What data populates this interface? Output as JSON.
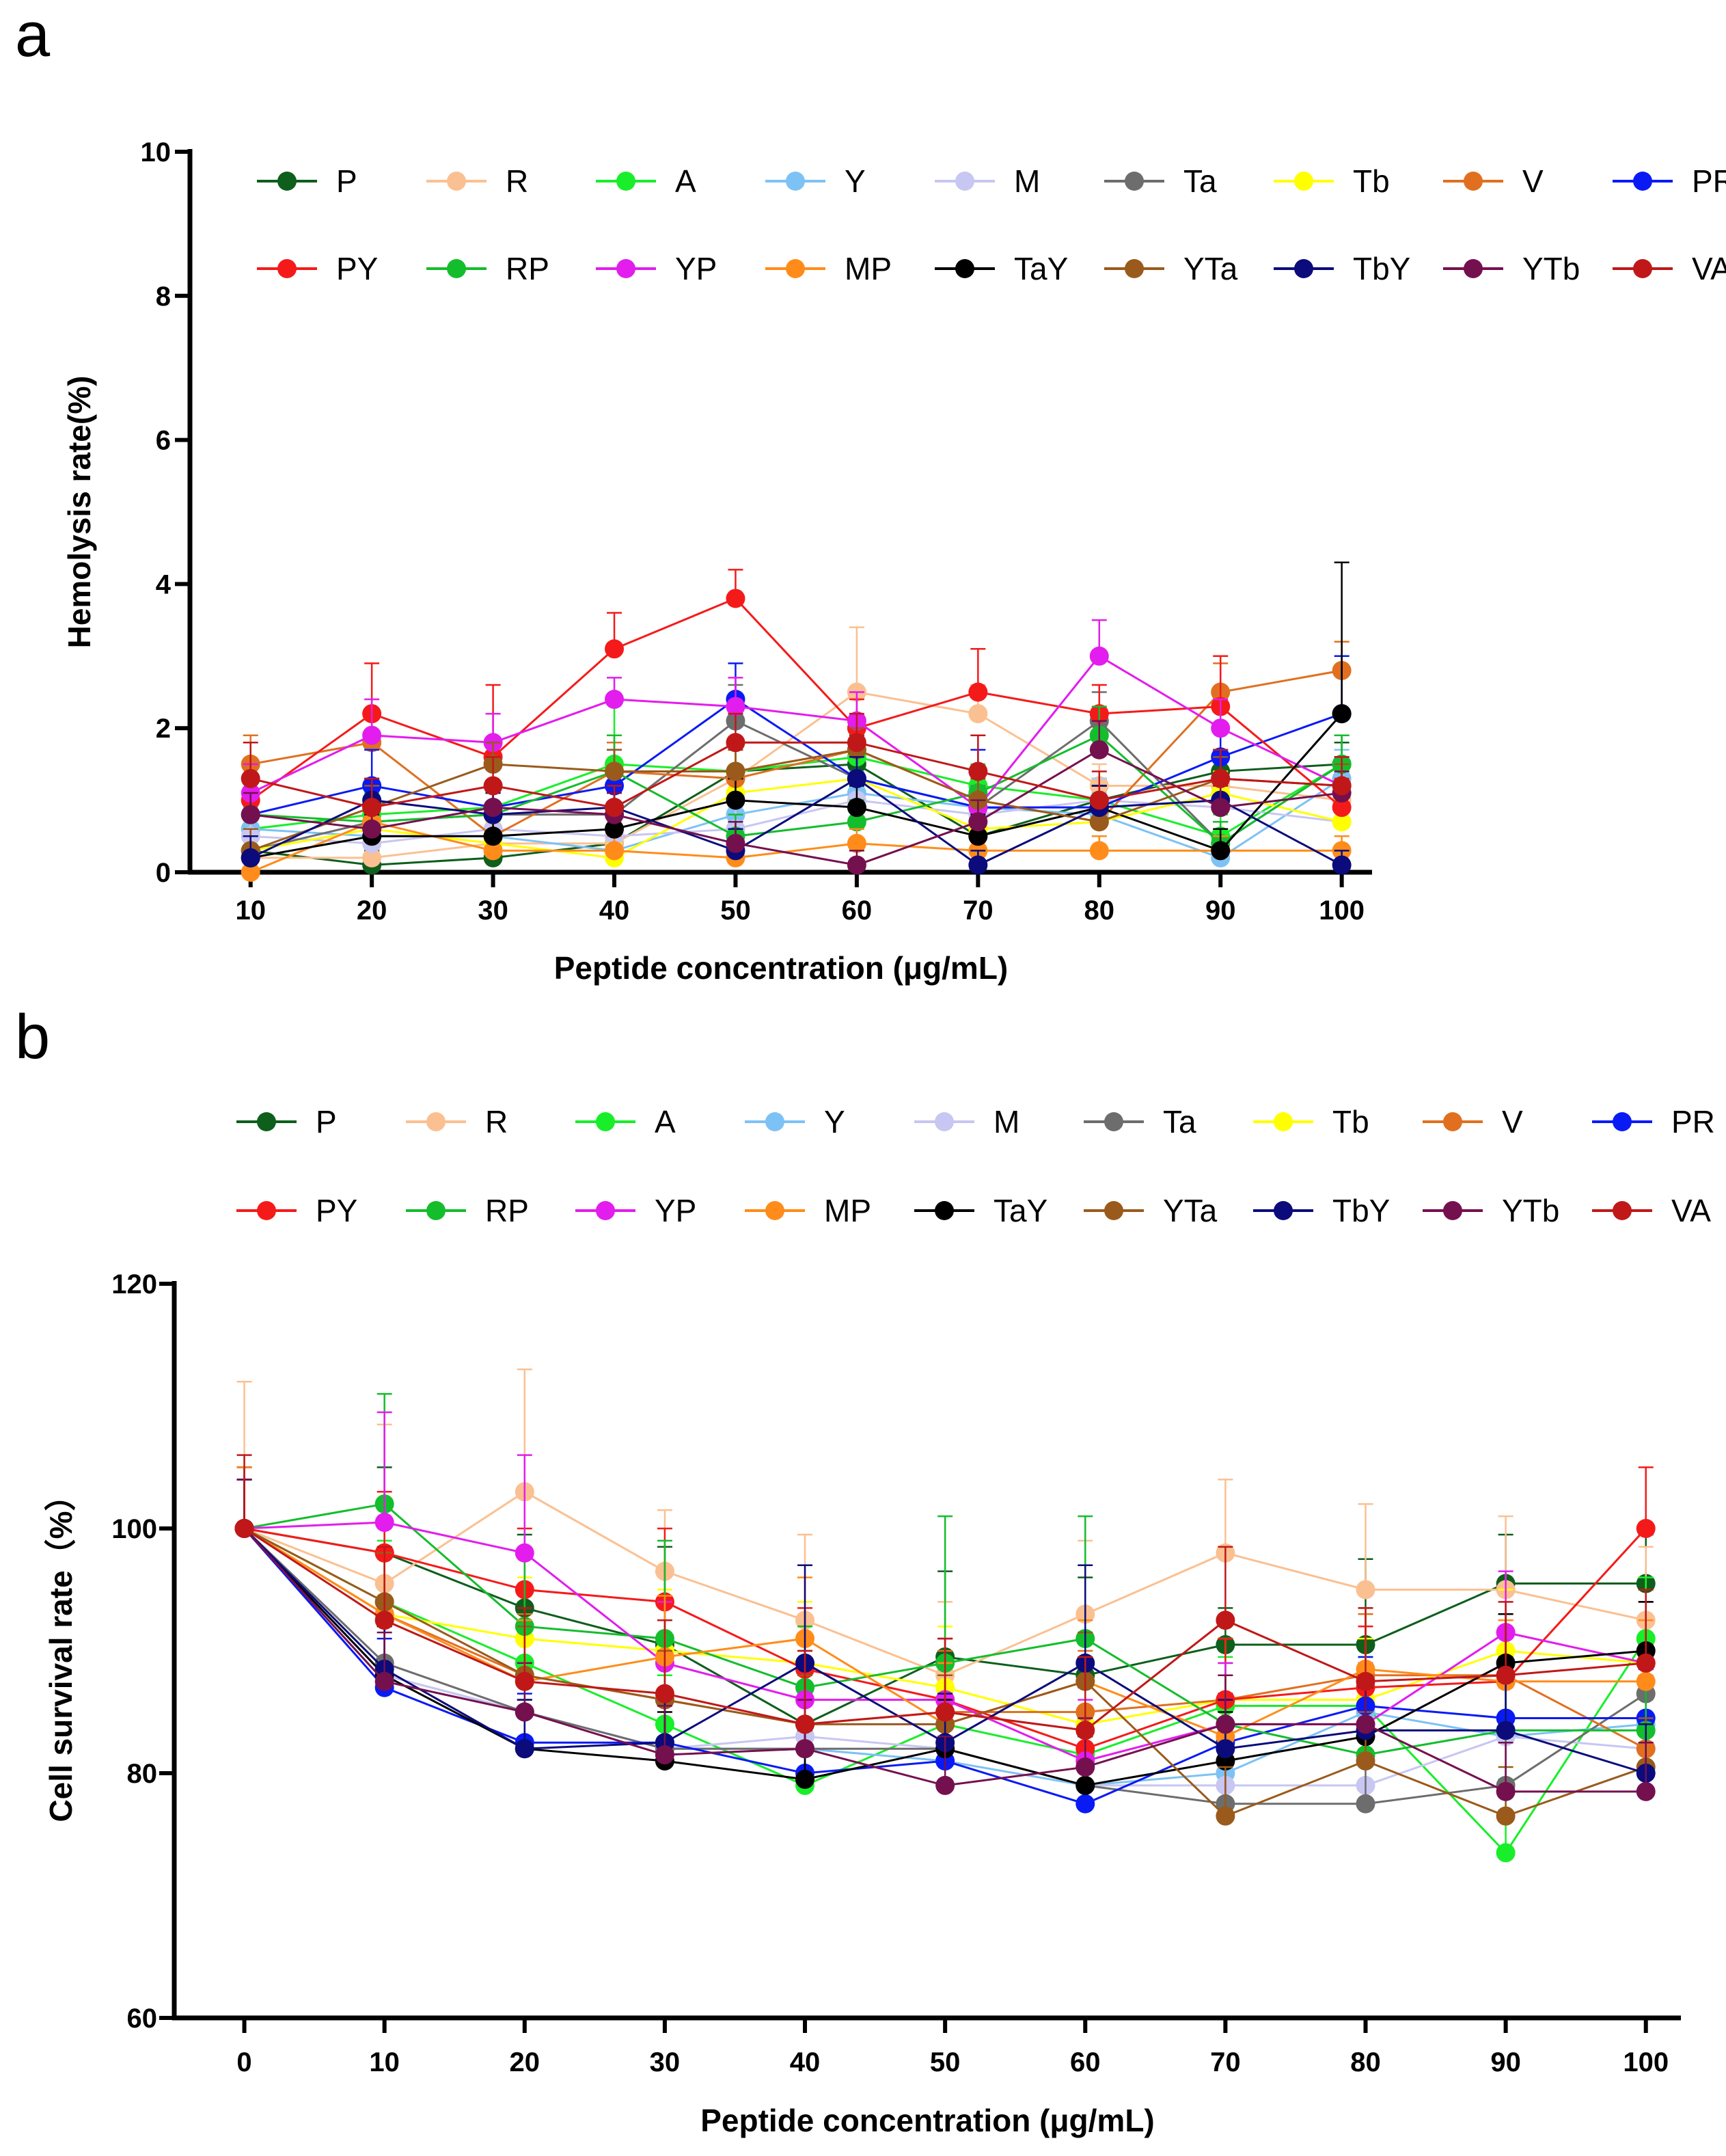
{
  "figure": {
    "panels": [
      "a",
      "b"
    ]
  },
  "chart_data": [
    {
      "panel": "a",
      "type": "line",
      "xlabel": "Peptide concentration (μg/mL)",
      "ylabel": "Hemolysis rate(%)",
      "x": [
        10,
        20,
        30,
        40,
        50,
        60,
        70,
        80,
        90,
        100
      ],
      "x_ticks": [
        10,
        20,
        30,
        40,
        50,
        60,
        70,
        80,
        90,
        100
      ],
      "ylim": [
        0,
        10
      ],
      "y_ticks": [
        0,
        2,
        4,
        6,
        8,
        10
      ],
      "legend_position": "top",
      "series": [
        {
          "name": "P",
          "color": "#0e5e1c",
          "values": [
            0.3,
            0.1,
            0.2,
            0.4,
            1.4,
            1.5,
            0.5,
            1.0,
            1.4,
            1.5
          ],
          "err": [
            0.3,
            0.2,
            0.2,
            0.3,
            0.3,
            0.4,
            0.3,
            0.3,
            0.3,
            0.3
          ]
        },
        {
          "name": "R",
          "color": "#fbc091",
          "values": [
            0.2,
            0.2,
            0.4,
            0.4,
            1.3,
            2.5,
            2.2,
            1.2,
            1.2,
            1.0
          ],
          "err": [
            0.3,
            0.3,
            0.3,
            0.3,
            0.4,
            0.9,
            0.4,
            0.3,
            0.4,
            0.4
          ]
        },
        {
          "name": "A",
          "color": "#19ee2a",
          "values": [
            0.6,
            0.8,
            0.9,
            1.5,
            1.4,
            1.6,
            1.2,
            1.0,
            0.5,
            1.5
          ],
          "err": [
            0.4,
            0.3,
            0.3,
            0.9,
            0.4,
            0.4,
            0.3,
            0.3,
            0.3,
            0.4
          ]
        },
        {
          "name": "Y",
          "color": "#7dc2f5",
          "values": [
            0.6,
            0.5,
            0.5,
            0.3,
            0.8,
            1.1,
            0.9,
            0.8,
            0.2,
            1.3
          ],
          "err": [
            0.3,
            0.3,
            0.3,
            0.2,
            0.3,
            0.3,
            0.3,
            0.3,
            0.2,
            0.4
          ]
        },
        {
          "name": "M",
          "color": "#c8c6f2",
          "values": [
            0.5,
            0.4,
            0.6,
            0.5,
            0.6,
            1.0,
            0.8,
            1.0,
            0.9,
            0.7
          ],
          "err": [
            0.3,
            0.3,
            0.3,
            0.3,
            0.3,
            0.3,
            0.3,
            0.3,
            0.3,
            0.3
          ]
        },
        {
          "name": "Ta",
          "color": "#6d6d6d",
          "values": [
            0.3,
            0.7,
            0.8,
            0.8,
            2.1,
            1.3,
            0.9,
            2.1,
            0.4,
            1.5
          ],
          "err": [
            0.3,
            0.3,
            0.3,
            0.3,
            0.5,
            0.4,
            0.3,
            0.4,
            0.3,
            0.4
          ]
        },
        {
          "name": "Tb",
          "color": "#ffff00",
          "values": [
            0.3,
            0.6,
            0.4,
            0.2,
            1.1,
            1.3,
            0.6,
            0.7,
            1.1,
            0.7
          ],
          "err": [
            0.3,
            0.3,
            0.3,
            0.2,
            0.3,
            0.3,
            0.3,
            0.3,
            0.3,
            0.3
          ]
        },
        {
          "name": "V",
          "color": "#e07020",
          "values": [
            1.5,
            1.8,
            0.5,
            1.4,
            1.3,
            1.7,
            1.0,
            0.7,
            2.5,
            2.8
          ],
          "err": [
            0.4,
            0.4,
            0.3,
            0.4,
            0.4,
            0.4,
            0.4,
            0.3,
            0.4,
            0.4
          ]
        },
        {
          "name": "PR",
          "color": "#0a1af5",
          "values": [
            0.8,
            1.2,
            0.9,
            1.2,
            2.4,
            1.3,
            0.9,
            0.9,
            1.6,
            2.2
          ],
          "err": [
            0.3,
            0.5,
            0.3,
            0.5,
            0.5,
            0.5,
            0.8,
            0.3,
            0.4,
            0.8
          ]
        },
        {
          "name": "PY",
          "color": "#f51a1a",
          "values": [
            1.0,
            2.2,
            1.6,
            3.1,
            3.8,
            2.0,
            2.5,
            2.2,
            2.3,
            0.9
          ],
          "err": [
            0.5,
            0.7,
            1.0,
            0.5,
            0.4,
            0.4,
            0.6,
            0.4,
            0.7,
            0.4
          ]
        },
        {
          "name": "RP",
          "color": "#14bd2c",
          "values": [
            0.8,
            0.7,
            0.8,
            1.4,
            0.5,
            0.7,
            1.1,
            1.9,
            0.4,
            1.5
          ],
          "err": [
            0.3,
            0.3,
            0.3,
            0.5,
            0.3,
            0.3,
            0.3,
            0.4,
            0.3,
            0.4
          ]
        },
        {
          "name": "YP",
          "color": "#e21ded",
          "values": [
            1.1,
            1.9,
            1.8,
            2.4,
            2.3,
            2.1,
            0.9,
            3.0,
            2.0,
            1.2
          ],
          "err": [
            0.4,
            0.5,
            0.4,
            0.3,
            0.4,
            0.4,
            0.4,
            0.5,
            0.4,
            0.4
          ]
        },
        {
          "name": "MP",
          "color": "#ff8c1a",
          "values": [
            0.0,
            0.7,
            0.3,
            0.3,
            0.2,
            0.4,
            0.3,
            0.3,
            0.3,
            0.3
          ],
          "err": [
            0.2,
            0.3,
            0.2,
            0.2,
            0.2,
            0.2,
            0.2,
            0.2,
            0.2,
            0.2
          ]
        },
        {
          "name": "TaY",
          "color": "#000000",
          "values": [
            0.2,
            0.5,
            0.5,
            0.6,
            1.0,
            0.9,
            0.5,
            0.9,
            0.3,
            2.2
          ],
          "err": [
            0.3,
            0.3,
            0.3,
            0.3,
            0.3,
            0.3,
            0.3,
            0.3,
            0.3,
            2.1
          ]
        },
        {
          "name": "YTa",
          "color": "#9a5a1c",
          "values": [
            0.3,
            0.9,
            1.5,
            1.4,
            1.4,
            1.7,
            1.0,
            0.7,
            1.3,
            1.2
          ],
          "err": [
            0.3,
            0.3,
            0.3,
            0.3,
            0.3,
            0.3,
            0.3,
            0.3,
            0.3,
            0.3
          ]
        },
        {
          "name": "TbY",
          "color": "#0b0b7c",
          "values": [
            0.2,
            1.0,
            0.8,
            0.9,
            0.3,
            1.3,
            0.1,
            0.9,
            1.0,
            0.1
          ],
          "err": [
            0.3,
            0.3,
            0.3,
            0.3,
            0.3,
            0.3,
            0.2,
            0.3,
            0.3,
            0.2
          ]
        },
        {
          "name": "YTb",
          "color": "#75104f",
          "values": [
            0.8,
            0.6,
            0.9,
            0.8,
            0.4,
            0.1,
            0.7,
            1.7,
            0.9,
            1.1
          ],
          "err": [
            0.3,
            0.3,
            0.3,
            0.3,
            0.3,
            0.2,
            0.3,
            0.4,
            0.3,
            0.3
          ]
        },
        {
          "name": "VA",
          "color": "#c01818",
          "values": [
            1.3,
            0.9,
            1.2,
            0.9,
            1.8,
            1.8,
            1.4,
            1.0,
            1.3,
            1.2
          ],
          "err": [
            0.5,
            0.4,
            0.4,
            0.3,
            0.4,
            0.4,
            0.5,
            0.4,
            0.4,
            0.4
          ]
        }
      ]
    },
    {
      "panel": "b",
      "type": "line",
      "xlabel": "Peptide concentration (μg/mL)",
      "ylabel": "Cell survival rate（%）",
      "x": [
        0,
        10,
        20,
        30,
        40,
        50,
        60,
        70,
        80,
        90,
        100
      ],
      "x_ticks": [
        0,
        10,
        20,
        30,
        40,
        50,
        60,
        70,
        80,
        90,
        100
      ],
      "ylim": [
        60,
        120
      ],
      "y_ticks": [
        60,
        80,
        100,
        120
      ],
      "legend_position": "top",
      "series": [
        {
          "name": "P",
          "color": "#0e5e1c",
          "values": [
            100,
            98,
            93.5,
            90.5,
            84,
            89.5,
            88,
            90.5,
            90.5,
            95.5,
            95.5
          ],
          "err": [
            5,
            7,
            6,
            8,
            6,
            7,
            8,
            3,
            7,
            4,
            4
          ]
        },
        {
          "name": "R",
          "color": "#fbc091",
          "values": [
            100,
            95.5,
            103,
            96.5,
            92.5,
            88,
            93,
            98,
            95,
            95,
            92.5
          ],
          "err": [
            12,
            13,
            10,
            5,
            7,
            6,
            6,
            6,
            7,
            6,
            6
          ]
        },
        {
          "name": "A",
          "color": "#19ee2a",
          "values": [
            100,
            94,
            89,
            84,
            79,
            84,
            81.5,
            85.5,
            85.5,
            73.5,
            91
          ],
          "err": [
            5,
            5,
            4,
            4,
            3,
            4,
            3,
            4,
            4,
            6,
            5
          ]
        },
        {
          "name": "Y",
          "color": "#7dc2f5",
          "values": [
            100,
            88,
            85,
            82,
            82,
            81,
            79,
            80,
            85,
            83,
            84
          ],
          "err": [
            4,
            4,
            4,
            4,
            4,
            4,
            4,
            4,
            4,
            4,
            4
          ]
        },
        {
          "name": "M",
          "color": "#c8c6f2",
          "values": [
            100,
            88,
            85,
            82,
            83,
            82,
            79,
            79,
            79,
            83,
            82
          ],
          "err": [
            4,
            4,
            4,
            4,
            4,
            4,
            4,
            4,
            4,
            4,
            4
          ]
        },
        {
          "name": "Ta",
          "color": "#6d6d6d",
          "values": [
            100,
            89,
            85,
            82,
            82,
            82,
            79,
            77.5,
            77.5,
            79,
            86.5
          ],
          "err": [
            4,
            4,
            4,
            4,
            4,
            4,
            4,
            4,
            4,
            4,
            4
          ]
        },
        {
          "name": "Tb",
          "color": "#ffff00",
          "values": [
            100,
            93,
            91,
            90,
            89,
            87,
            84,
            86,
            86,
            90,
            89
          ],
          "err": [
            5,
            5,
            5,
            5,
            5,
            5,
            5,
            5,
            5,
            5,
            5
          ]
        },
        {
          "name": "V",
          "color": "#e07020",
          "values": [
            100,
            93,
            88,
            86,
            84,
            85,
            85,
            86,
            88,
            88,
            82
          ],
          "err": [
            5,
            5,
            5,
            5,
            5,
            5,
            5,
            5,
            5,
            5,
            5
          ]
        },
        {
          "name": "PR",
          "color": "#0a1af5",
          "values": [
            100,
            87,
            82.5,
            82.5,
            80,
            81,
            77.5,
            82.5,
            85.5,
            84.5,
            84.5
          ],
          "err": [
            4,
            4,
            4,
            4,
            4,
            4,
            4,
            4,
            4,
            4,
            4
          ]
        },
        {
          "name": "PY",
          "color": "#f51a1a",
          "values": [
            100,
            98,
            95,
            94,
            88.5,
            86,
            82,
            86,
            87,
            87.5,
            100
          ],
          "err": [
            5,
            5,
            5,
            6,
            5,
            5,
            5,
            5,
            5,
            5,
            5
          ]
        },
        {
          "name": "RP",
          "color": "#14bd2c",
          "values": [
            100,
            102,
            92,
            91,
            87,
            89,
            91,
            84,
            81.5,
            83.5,
            83.5
          ],
          "err": [
            5,
            9,
            6,
            8,
            5,
            12,
            10,
            5,
            6,
            6,
            6
          ]
        },
        {
          "name": "YP",
          "color": "#e21ded",
          "values": [
            100,
            100.5,
            98,
            89,
            86,
            86,
            81,
            84,
            84,
            91.5,
            89
          ],
          "err": [
            5,
            9,
            8,
            5,
            5,
            5,
            5,
            5,
            5,
            5,
            5
          ]
        },
        {
          "name": "MP",
          "color": "#ff8c1a",
          "values": [
            100,
            93,
            87.5,
            89.5,
            91,
            84,
            87.5,
            83,
            88.5,
            87.5,
            87.5
          ],
          "err": [
            5,
            5,
            5,
            5,
            5,
            5,
            5,
            5,
            5,
            5,
            5
          ]
        },
        {
          "name": "TaY",
          "color": "#000000",
          "values": [
            100,
            88,
            82,
            81,
            79.5,
            82,
            79,
            81,
            83,
            89,
            90
          ],
          "err": [
            4,
            4,
            4,
            4,
            4,
            4,
            4,
            4,
            4,
            4,
            4
          ]
        },
        {
          "name": "YTa",
          "color": "#9a5a1c",
          "values": [
            100,
            94,
            88,
            86,
            84,
            84,
            87.5,
            76.5,
            81,
            76.5,
            80.5
          ],
          "err": [
            4,
            4,
            4,
            4,
            4,
            4,
            4,
            4,
            4,
            4,
            4
          ]
        },
        {
          "name": "TbY",
          "color": "#0b0b7c",
          "values": [
            100,
            88.5,
            82,
            82.5,
            89,
            82.5,
            89,
            82,
            83.5,
            83.5,
            80
          ],
          "err": [
            4,
            4,
            4,
            4,
            8,
            4,
            8,
            4,
            4,
            4,
            4
          ]
        },
        {
          "name": "YTb",
          "color": "#75104f",
          "values": [
            100,
            87.5,
            85,
            81.5,
            82,
            79,
            80.5,
            84,
            84,
            78.5,
            78.5
          ],
          "err": [
            4,
            4,
            4,
            4,
            4,
            4,
            4,
            4,
            4,
            4,
            4
          ]
        },
        {
          "name": "VA",
          "color": "#c01818",
          "values": [
            100,
            92.5,
            87.5,
            86.5,
            84,
            85,
            83.5,
            92.5,
            87.5,
            88,
            89
          ],
          "err": [
            6,
            6,
            6,
            6,
            6,
            6,
            6,
            6,
            6,
            6,
            6
          ]
        }
      ]
    }
  ]
}
